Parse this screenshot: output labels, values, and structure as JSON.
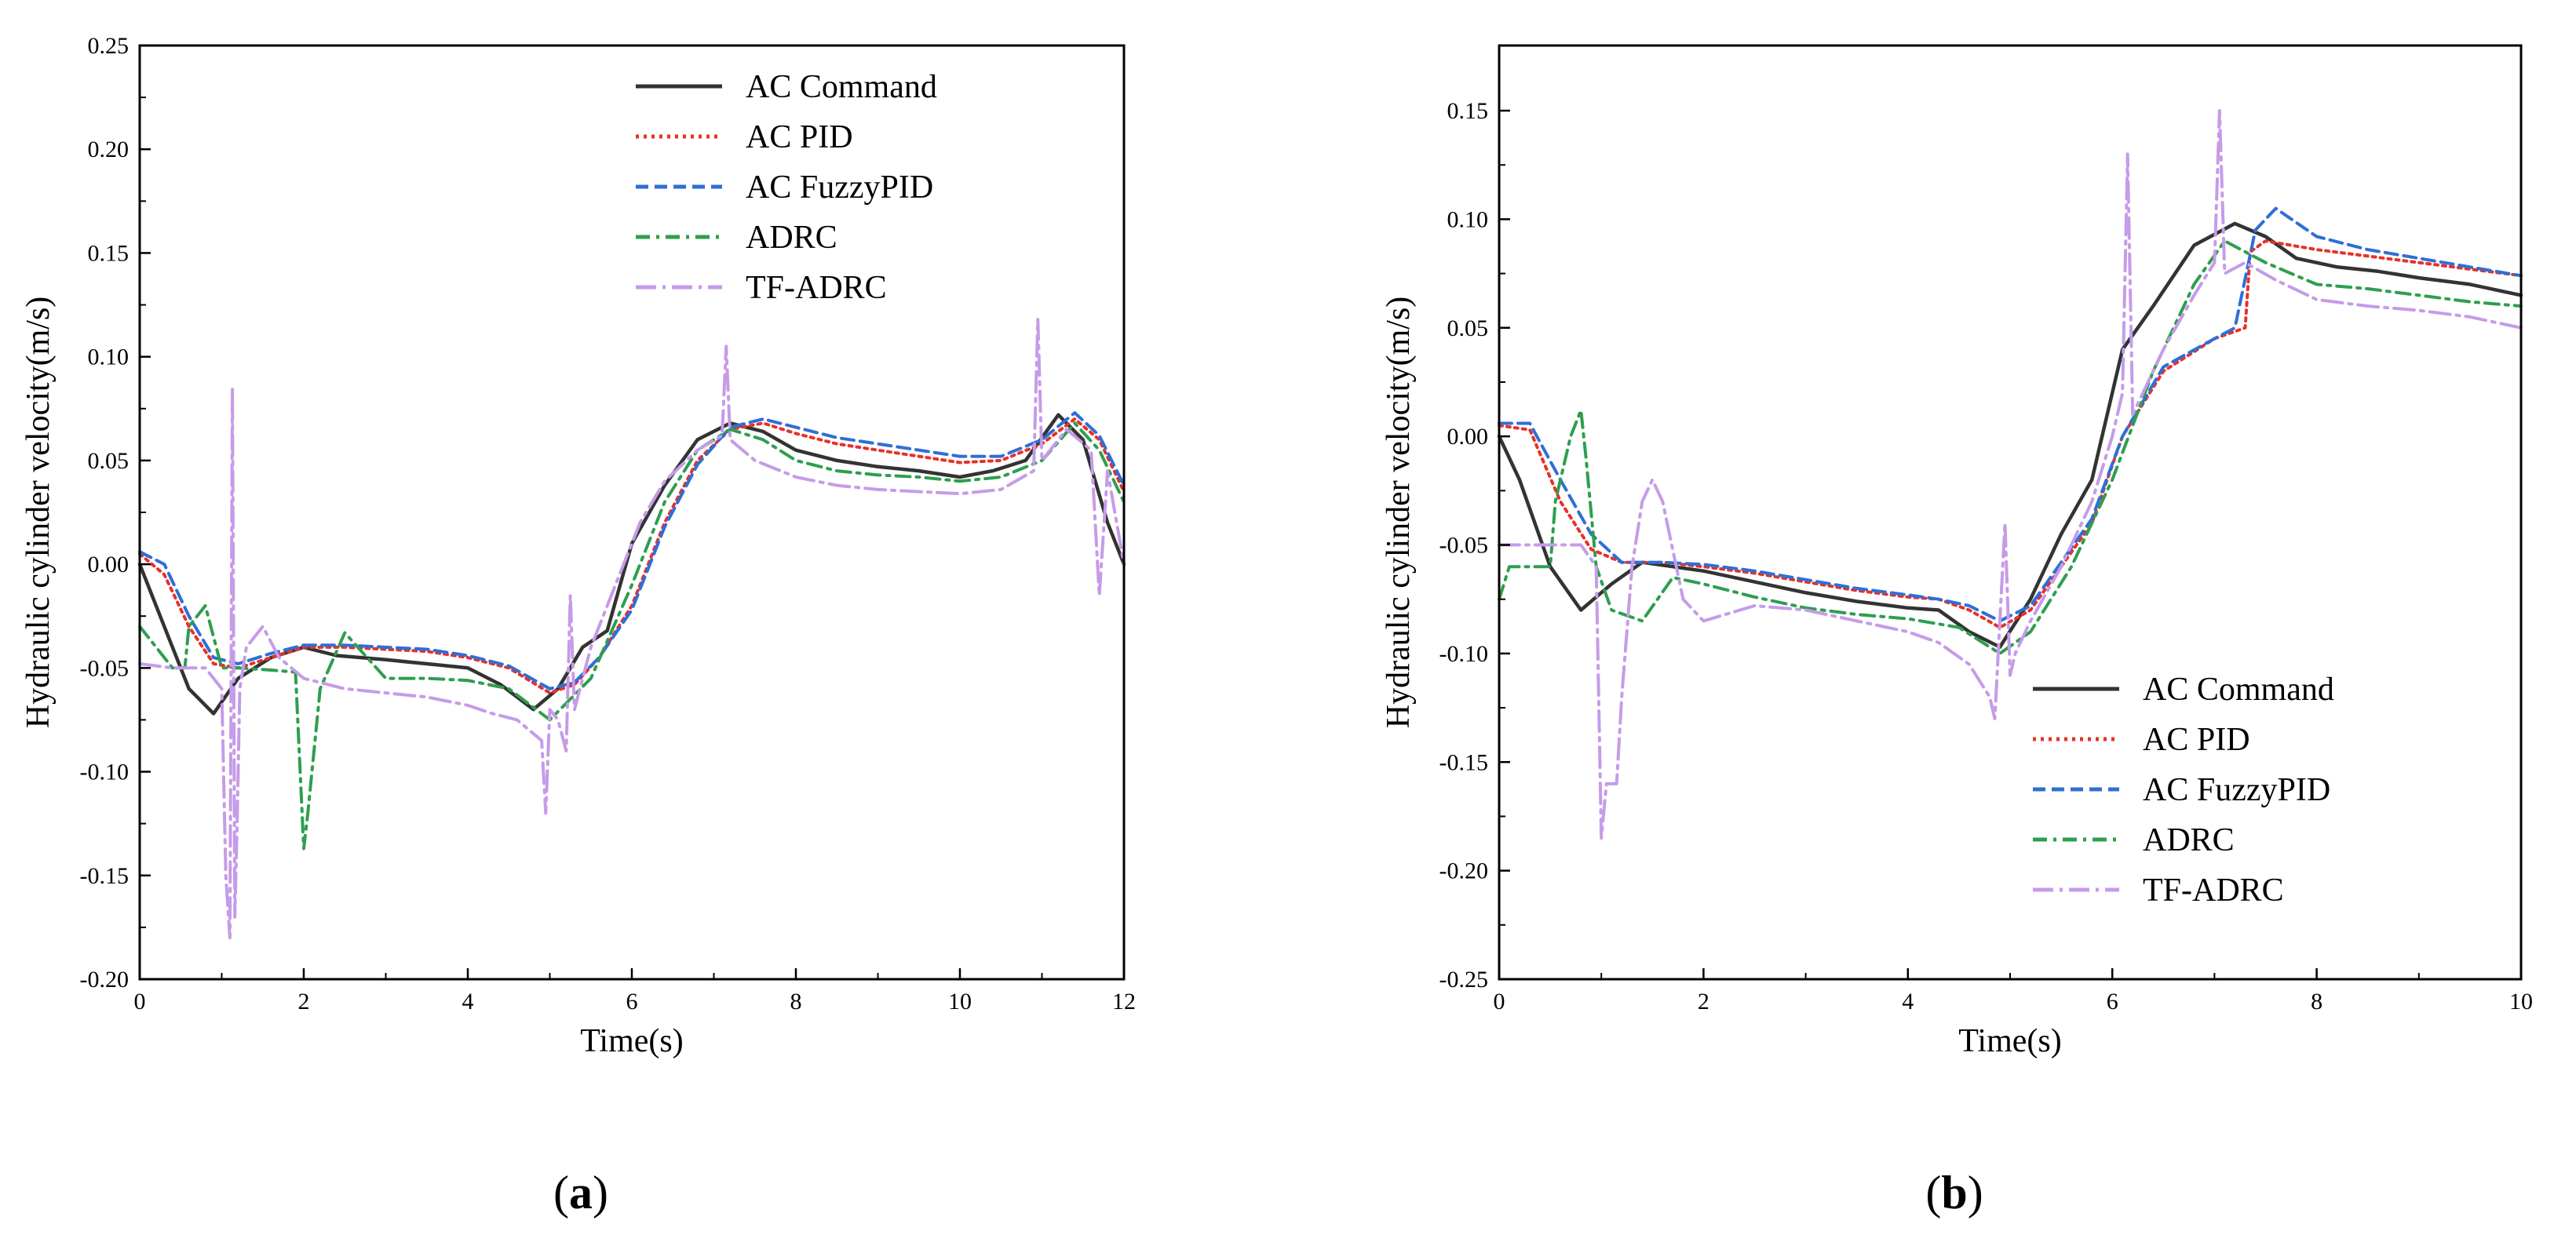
{
  "colors": {
    "command": "#333333",
    "pid": "#e8302a",
    "fuzzypid": "#2e6fd6",
    "adrc": "#2e9e4f",
    "tfadrc": "#c69be8"
  },
  "chart_data": [
    {
      "type": "line",
      "panel_label": "a",
      "xlabel": "Time(s)",
      "ylabel": "Hydraulic cylinder velocity(m/s)",
      "xlim": [
        0,
        12
      ],
      "ylim": [
        -0.2,
        0.25
      ],
      "xticks": [
        0,
        2,
        4,
        6,
        8,
        10,
        12
      ],
      "yticks": [
        -0.2,
        -0.15,
        -0.1,
        -0.05,
        0.0,
        0.05,
        0.1,
        0.15,
        0.2,
        0.25
      ],
      "x_tick_labels": [
        "0",
        "2",
        "4",
        "6",
        "8",
        "10",
        "12"
      ],
      "y_tick_labels": [
        "-0.20",
        "-0.15",
        "-0.10",
        "-0.05",
        "0.00",
        "0.05",
        "0.10",
        "0.15",
        "0.20",
        "0.25"
      ],
      "legend_position": "top-right",
      "series": [
        {
          "name": "AC Command",
          "key": "command",
          "dash": "solid",
          "x": [
            0,
            0.3,
            0.6,
            0.9,
            1.2,
            1.6,
            2.0,
            2.4,
            3.0,
            3.5,
            4.0,
            4.4,
            4.8,
            5.1,
            5.4,
            5.7,
            6.0,
            6.4,
            6.8,
            7.2,
            7.6,
            8.0,
            8.5,
            9.0,
            9.5,
            10.0,
            10.4,
            10.8,
            11.2,
            11.5,
            11.8,
            12.0
          ],
          "y": [
            0.0,
            -0.03,
            -0.06,
            -0.072,
            -0.055,
            -0.045,
            -0.04,
            -0.044,
            -0.046,
            -0.048,
            -0.05,
            -0.058,
            -0.07,
            -0.06,
            -0.04,
            -0.032,
            0.01,
            0.038,
            0.06,
            0.068,
            0.064,
            0.055,
            0.05,
            0.047,
            0.045,
            0.042,
            0.045,
            0.05,
            0.072,
            0.06,
            0.02,
            0.0
          ]
        },
        {
          "name": "AC PID",
          "key": "pid",
          "dash": "dotted",
          "x": [
            0,
            0.3,
            0.6,
            0.9,
            1.2,
            1.6,
            2.0,
            2.5,
            3.0,
            3.5,
            4.0,
            4.5,
            5.0,
            5.3,
            5.6,
            6.0,
            6.4,
            6.8,
            7.2,
            7.6,
            8.0,
            8.5,
            9.0,
            9.5,
            10.0,
            10.5,
            11.0,
            11.4,
            11.7,
            12.0
          ],
          "y": [
            0.005,
            -0.005,
            -0.03,
            -0.048,
            -0.05,
            -0.045,
            -0.04,
            -0.04,
            -0.041,
            -0.042,
            -0.045,
            -0.05,
            -0.062,
            -0.058,
            -0.045,
            -0.02,
            0.02,
            0.05,
            0.065,
            0.068,
            0.063,
            0.058,
            0.055,
            0.052,
            0.049,
            0.05,
            0.058,
            0.07,
            0.06,
            0.035
          ]
        },
        {
          "name": "AC FuzzyPID",
          "key": "fuzzypid",
          "dash": "dashed",
          "x": [
            0,
            0.3,
            0.6,
            0.9,
            1.2,
            1.6,
            2.0,
            2.5,
            3.0,
            3.5,
            4.0,
            4.5,
            5.0,
            5.3,
            5.6,
            6.0,
            6.4,
            6.8,
            7.2,
            7.6,
            8.0,
            8.5,
            9.0,
            9.5,
            10.0,
            10.5,
            11.0,
            11.4,
            11.7,
            12.0
          ],
          "y": [
            0.006,
            0.0,
            -0.025,
            -0.045,
            -0.048,
            -0.043,
            -0.039,
            -0.039,
            -0.04,
            -0.041,
            -0.044,
            -0.049,
            -0.06,
            -0.057,
            -0.045,
            -0.022,
            0.018,
            0.048,
            0.066,
            0.07,
            0.066,
            0.061,
            0.058,
            0.055,
            0.052,
            0.052,
            0.06,
            0.073,
            0.062,
            0.038
          ]
        },
        {
          "name": "ADRC",
          "key": "adrc",
          "dash": "dashdot",
          "x": [
            0,
            0.4,
            0.55,
            0.6,
            0.8,
            1.0,
            1.2,
            1.6,
            1.9,
            2.0,
            2.05,
            2.2,
            2.5,
            3.0,
            3.5,
            4.0,
            4.5,
            5.0,
            5.5,
            6.0,
            6.4,
            6.8,
            7.2,
            7.6,
            8.0,
            8.5,
            9.0,
            9.5,
            10.0,
            10.5,
            11.0,
            11.4,
            11.7,
            12.0
          ],
          "y": [
            -0.03,
            -0.05,
            -0.05,
            -0.03,
            -0.02,
            -0.05,
            -0.05,
            -0.051,
            -0.052,
            -0.137,
            -0.12,
            -0.06,
            -0.033,
            -0.055,
            -0.055,
            -0.056,
            -0.06,
            -0.075,
            -0.055,
            -0.01,
            0.03,
            0.055,
            0.065,
            0.06,
            0.05,
            0.045,
            0.043,
            0.042,
            0.04,
            0.042,
            0.05,
            0.068,
            0.055,
            0.03
          ]
        },
        {
          "name": "TF-ADRC",
          "key": "tfadrc",
          "dash": "longdashdot",
          "x": [
            0,
            0.4,
            0.8,
            1.0,
            1.05,
            1.1,
            1.13,
            1.16,
            1.19,
            1.22,
            1.3,
            1.5,
            1.7,
            2.0,
            2.5,
            3.0,
            3.5,
            4.0,
            4.3,
            4.6,
            4.9,
            4.95,
            5.0,
            5.1,
            5.2,
            5.25,
            5.3,
            5.5,
            5.8,
            6.1,
            6.4,
            6.8,
            7.1,
            7.15,
            7.2,
            7.5,
            8.0,
            8.5,
            9.0,
            9.5,
            10.0,
            10.5,
            10.9,
            10.95,
            11.0,
            11.3,
            11.6,
            11.7,
            11.8,
            12.0
          ],
          "y": [
            -0.048,
            -0.05,
            -0.05,
            -0.06,
            -0.15,
            -0.18,
            0.085,
            -0.17,
            -0.12,
            -0.06,
            -0.04,
            -0.03,
            -0.045,
            -0.055,
            -0.06,
            -0.062,
            -0.064,
            -0.068,
            -0.072,
            -0.075,
            -0.085,
            -0.12,
            -0.07,
            -0.075,
            -0.09,
            -0.015,
            -0.07,
            -0.04,
            -0.01,
            0.02,
            0.04,
            0.055,
            0.062,
            0.105,
            0.06,
            0.05,
            0.042,
            0.038,
            0.036,
            0.035,
            0.034,
            0.036,
            0.045,
            0.118,
            0.05,
            0.065,
            0.055,
            -0.015,
            0.045,
            0.0
          ]
        }
      ]
    },
    {
      "type": "line",
      "panel_label": "b",
      "xlabel": "Time(s)",
      "ylabel": "Hydraulic cylinder velocity(m/s)",
      "xlim": [
        0,
        10
      ],
      "ylim": [
        -0.25,
        0.18
      ],
      "xticks": [
        0,
        2,
        4,
        6,
        8,
        10
      ],
      "yticks": [
        -0.25,
        -0.2,
        -0.15,
        -0.1,
        -0.05,
        0.0,
        0.05,
        0.1,
        0.15
      ],
      "x_tick_labels": [
        "0",
        "2",
        "4",
        "6",
        "8",
        "10"
      ],
      "y_tick_labels": [
        "-0.25",
        "-0.20",
        "-0.15",
        "-0.10",
        "-0.05",
        "0.00",
        "0.05",
        "0.10",
        "0.15"
      ],
      "legend_position": "bottom-right",
      "series": [
        {
          "name": "AC Command",
          "key": "command",
          "dash": "solid",
          "x": [
            0,
            0.2,
            0.5,
            0.8,
            1.1,
            1.4,
            2.0,
            2.5,
            3.0,
            3.5,
            4.0,
            4.3,
            4.6,
            4.9,
            5.2,
            5.5,
            5.8,
            6.1,
            6.4,
            6.8,
            7.2,
            7.5,
            7.8,
            8.2,
            8.6,
            9.0,
            9.5,
            10.0
          ],
          "y": [
            0.0,
            -0.02,
            -0.06,
            -0.08,
            -0.068,
            -0.058,
            -0.062,
            -0.067,
            -0.072,
            -0.076,
            -0.079,
            -0.08,
            -0.09,
            -0.097,
            -0.075,
            -0.045,
            -0.02,
            0.04,
            0.06,
            0.088,
            0.098,
            0.092,
            0.082,
            0.078,
            0.076,
            0.073,
            0.07,
            0.065
          ]
        },
        {
          "name": "AC PID",
          "key": "pid",
          "dash": "dotted",
          "x": [
            0,
            0.3,
            0.6,
            0.9,
            1.2,
            1.6,
            2.0,
            2.5,
            3.0,
            3.5,
            4.0,
            4.3,
            4.6,
            4.9,
            5.2,
            5.5,
            5.8,
            6.1,
            6.5,
            7.0,
            7.3,
            7.35,
            7.5,
            8.0,
            8.5,
            9.0,
            9.5,
            10.0
          ],
          "y": [
            0.005,
            0.003,
            -0.03,
            -0.052,
            -0.058,
            -0.058,
            -0.06,
            -0.063,
            -0.067,
            -0.071,
            -0.074,
            -0.075,
            -0.08,
            -0.088,
            -0.08,
            -0.06,
            -0.04,
            0.0,
            0.03,
            0.045,
            0.05,
            0.085,
            0.09,
            0.086,
            0.083,
            0.08,
            0.077,
            0.074
          ]
        },
        {
          "name": "AC FuzzyPID",
          "key": "fuzzypid",
          "dash": "dashed",
          "x": [
            0,
            0.3,
            0.6,
            0.9,
            1.2,
            1.6,
            2.0,
            2.5,
            3.0,
            3.5,
            4.0,
            4.3,
            4.6,
            4.9,
            5.2,
            5.5,
            5.8,
            6.1,
            6.5,
            7.0,
            7.2,
            7.4,
            7.6,
            8.0,
            8.5,
            9.0,
            9.5,
            10.0
          ],
          "y": [
            0.006,
            0.006,
            -0.02,
            -0.045,
            -0.058,
            -0.058,
            -0.059,
            -0.062,
            -0.066,
            -0.07,
            -0.073,
            -0.075,
            -0.078,
            -0.085,
            -0.078,
            -0.058,
            -0.038,
            0.0,
            0.032,
            0.045,
            0.05,
            0.095,
            0.105,
            0.092,
            0.086,
            0.082,
            0.078,
            0.074
          ]
        },
        {
          "name": "ADRC",
          "key": "adrc",
          "dash": "dashdot",
          "x": [
            0,
            0.1,
            0.5,
            0.55,
            0.7,
            0.8,
            0.85,
            0.95,
            1.1,
            1.4,
            1.7,
            2.0,
            2.5,
            3.0,
            3.5,
            4.0,
            4.5,
            4.9,
            5.2,
            5.6,
            6.0,
            6.4,
            6.8,
            7.1,
            7.5,
            8.0,
            8.5,
            9.0,
            9.5,
            10.0
          ],
          "y": [
            -0.075,
            -0.06,
            -0.06,
            -0.03,
            0.0,
            0.012,
            -0.01,
            -0.06,
            -0.08,
            -0.085,
            -0.065,
            -0.068,
            -0.074,
            -0.079,
            -0.082,
            -0.084,
            -0.088,
            -0.1,
            -0.09,
            -0.06,
            -0.02,
            0.03,
            0.07,
            0.09,
            0.08,
            0.07,
            0.068,
            0.065,
            0.062,
            0.06
          ]
        },
        {
          "name": "TF-ADRC",
          "key": "tfadrc",
          "dash": "longdashdot",
          "x": [
            0,
            0.4,
            0.8,
            0.95,
            1.0,
            1.05,
            1.15,
            1.2,
            1.3,
            1.4,
            1.5,
            1.6,
            1.8,
            2.0,
            2.5,
            3.0,
            3.5,
            4.0,
            4.3,
            4.6,
            4.8,
            4.85,
            4.95,
            5.0,
            5.05,
            5.2,
            5.5,
            5.8,
            6.0,
            6.1,
            6.15,
            6.2,
            6.5,
            6.8,
            7.0,
            7.05,
            7.1,
            7.3,
            7.6,
            8.0,
            8.5,
            9.0,
            9.5,
            10.0
          ],
          "y": [
            -0.05,
            -0.05,
            -0.05,
            -0.06,
            -0.185,
            -0.16,
            -0.16,
            -0.12,
            -0.06,
            -0.03,
            -0.02,
            -0.03,
            -0.075,
            -0.085,
            -0.078,
            -0.08,
            -0.085,
            -0.09,
            -0.095,
            -0.105,
            -0.12,
            -0.13,
            -0.04,
            -0.11,
            -0.1,
            -0.085,
            -0.06,
            -0.03,
            0.0,
            0.02,
            0.13,
            0.01,
            0.04,
            0.065,
            0.08,
            0.15,
            0.075,
            0.08,
            0.072,
            0.063,
            0.06,
            0.058,
            0.055,
            0.05
          ]
        }
      ]
    }
  ]
}
